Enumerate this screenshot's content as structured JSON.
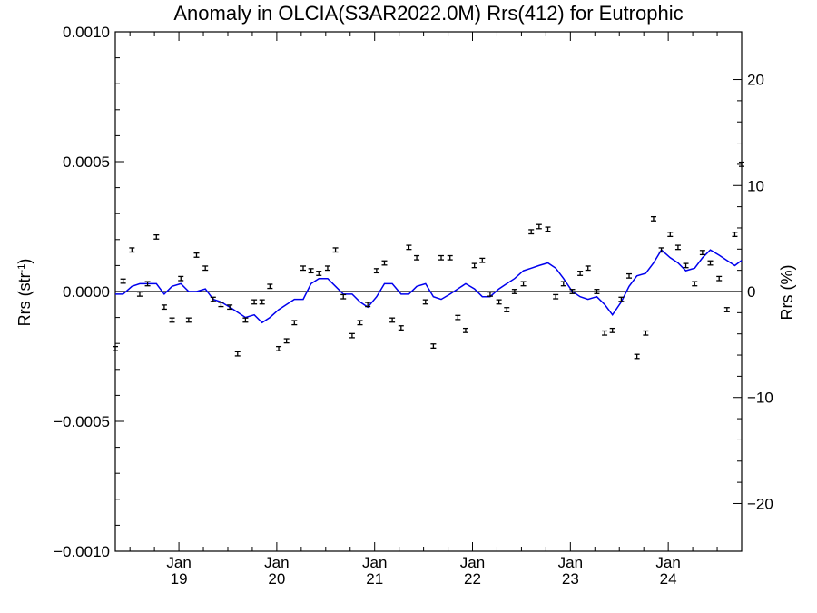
{
  "chart_data": {
    "type": "line",
    "title": "Anomaly in OLCIA(S3AR2022.0M) Rrs(412) for Eutrophic",
    "ylabel_left": {
      "base": "Rrs (str",
      "sup": "-1",
      "end": ")"
    },
    "ylabel_right": "Rrs (%)",
    "xlim": [
      2018.35,
      2024.75
    ],
    "ylim_left": [
      -0.001,
      0.001
    ],
    "ylim_right": [
      -24.5,
      24.5
    ],
    "yticks_left": [
      {
        "value": 0.001,
        "label": "0.0010"
      },
      {
        "value": 0.0005,
        "label": "0.0005"
      },
      {
        "value": 0.0,
        "label": "0.0000"
      },
      {
        "value": -0.0005,
        "label": "−0.0005"
      },
      {
        "value": -0.001,
        "label": "−0.0010"
      }
    ],
    "yticks_right": [
      {
        "value": 20,
        "label": "20"
      },
      {
        "value": 10,
        "label": "10"
      },
      {
        "value": 0,
        "label": "0"
      },
      {
        "value": -10,
        "label": "−10"
      },
      {
        "value": -20,
        "label": "−20"
      }
    ],
    "xticks": [
      {
        "value": 2019.0,
        "month": "Jan",
        "year": "19"
      },
      {
        "value": 2020.0,
        "month": "Jan",
        "year": "20"
      },
      {
        "value": 2021.0,
        "month": "Jan",
        "year": "21"
      },
      {
        "value": 2022.0,
        "month": "Jan",
        "year": "22"
      },
      {
        "value": 2023.0,
        "month": "Jan",
        "year": "23"
      },
      {
        "value": 2024.0,
        "month": "Jan",
        "year": "24"
      }
    ],
    "zero_line": true,
    "monthly_anomaly": {
      "x": [
        2018.35,
        2018.43,
        2018.52,
        2018.6,
        2018.68,
        2018.77,
        2018.85,
        2018.93,
        2019.02,
        2019.1,
        2019.18,
        2019.27,
        2019.35,
        2019.43,
        2019.52,
        2019.6,
        2019.68,
        2019.77,
        2019.85,
        2019.93,
        2020.02,
        2020.1,
        2020.18,
        2020.27,
        2020.35,
        2020.43,
        2020.52,
        2020.6,
        2020.68,
        2020.77,
        2020.85,
        2020.93,
        2021.02,
        2021.1,
        2021.18,
        2021.27,
        2021.35,
        2021.43,
        2021.52,
        2021.6,
        2021.68,
        2021.77,
        2021.85,
        2021.93,
        2022.02,
        2022.1,
        2022.18,
        2022.27,
        2022.35,
        2022.43,
        2022.52,
        2022.6,
        2022.68,
        2022.77,
        2022.85,
        2022.93,
        2023.02,
        2023.1,
        2023.18,
        2023.27,
        2023.35,
        2023.43,
        2023.52,
        2023.6,
        2023.68,
        2023.77,
        2023.85,
        2023.93,
        2024.02,
        2024.1,
        2024.18,
        2024.27,
        2024.35,
        2024.43,
        2024.52,
        2024.6,
        2024.68,
        2024.75
      ],
      "y": [
        -0.00022,
        4e-05,
        0.00016,
        -1e-05,
        3e-05,
        0.00021,
        -6e-05,
        -0.00011,
        5e-05,
        -0.00011,
        0.00014,
        9e-05,
        -3e-05,
        -5e-05,
        -6e-05,
        -0.00024,
        -0.00011,
        -4e-05,
        -4e-05,
        2e-05,
        -0.00022,
        -0.00019,
        -0.00012,
        9e-05,
        8e-05,
        7e-05,
        9e-05,
        0.00016,
        -2e-05,
        -0.00017,
        -0.00012,
        -5e-05,
        8e-05,
        0.00011,
        -0.00011,
        -0.00014,
        0.00017,
        0.00013,
        -4e-05,
        -0.00021,
        0.00013,
        0.00013,
        -0.0001,
        -0.00015,
        0.0001,
        0.00012,
        -1e-05,
        -4e-05,
        -7e-05,
        0.0,
        3e-05,
        0.00023,
        0.00025,
        0.00024,
        -2e-05,
        3e-05,
        0.0,
        7e-05,
        9e-05,
        0.0,
        -0.00016,
        -0.00015,
        -3e-05,
        6e-05,
        -0.00025,
        -0.00016,
        0.00028,
        0.00016,
        0.00022,
        0.00017,
        0.0001,
        3e-05,
        0.00015,
        0.00011,
        5e-05,
        -7e-05,
        0.00022,
        0.00049
      ],
      "err": 8e-06,
      "color": "#000000"
    },
    "running_mean": {
      "x": [
        2018.35,
        2018.43,
        2018.52,
        2018.6,
        2018.68,
        2018.77,
        2018.85,
        2018.93,
        2019.02,
        2019.1,
        2019.18,
        2019.27,
        2019.35,
        2019.43,
        2019.52,
        2019.6,
        2019.68,
        2019.77,
        2019.85,
        2019.93,
        2020.02,
        2020.1,
        2020.18,
        2020.27,
        2020.35,
        2020.43,
        2020.52,
        2020.6,
        2020.68,
        2020.77,
        2020.85,
        2020.93,
        2021.02,
        2021.1,
        2021.18,
        2021.27,
        2021.35,
        2021.43,
        2021.52,
        2021.6,
        2021.68,
        2021.77,
        2021.85,
        2021.93,
        2022.02,
        2022.1,
        2022.18,
        2022.27,
        2022.35,
        2022.43,
        2022.52,
        2022.6,
        2022.68,
        2022.77,
        2022.85,
        2022.93,
        2023.02,
        2023.1,
        2023.18,
        2023.27,
        2023.35,
        2023.43,
        2023.52,
        2023.6,
        2023.68,
        2023.77,
        2023.85,
        2023.93,
        2024.02,
        2024.1,
        2024.18,
        2024.27,
        2024.35,
        2024.43,
        2024.52,
        2024.6,
        2024.68,
        2024.75
      ],
      "y": [
        -1e-05,
        -1e-05,
        2e-05,
        3e-05,
        3e-05,
        3e-05,
        -1e-05,
        2e-05,
        3e-05,
        0.0,
        0.0,
        1e-05,
        -3e-05,
        -4e-05,
        -6e-05,
        -8e-05,
        -0.0001,
        -9e-05,
        -0.00012,
        -0.0001,
        -7e-05,
        -5e-05,
        -3e-05,
        -3e-05,
        3e-05,
        5e-05,
        5e-05,
        2e-05,
        -1e-05,
        -1e-05,
        -4e-05,
        -6e-05,
        -2e-05,
        3e-05,
        3e-05,
        -1e-05,
        -1e-05,
        2e-05,
        3e-05,
        -2e-05,
        -3e-05,
        -1e-05,
        1e-05,
        3e-05,
        1e-05,
        -2e-05,
        -2e-05,
        1e-05,
        3e-05,
        5e-05,
        8e-05,
        9e-05,
        0.0001,
        0.00011,
        9e-05,
        5e-05,
        0.0,
        -2e-05,
        -3e-05,
        -2e-05,
        -5e-05,
        -9e-05,
        -4e-05,
        2e-05,
        6e-05,
        7e-05,
        0.00011,
        0.00016,
        0.00013,
        0.00011,
        8e-05,
        9e-05,
        0.00013,
        0.00016,
        0.00014,
        0.00012,
        0.0001,
        0.00012
      ],
      "color": "#0000ee"
    },
    "grid": false,
    "legend": "none"
  }
}
